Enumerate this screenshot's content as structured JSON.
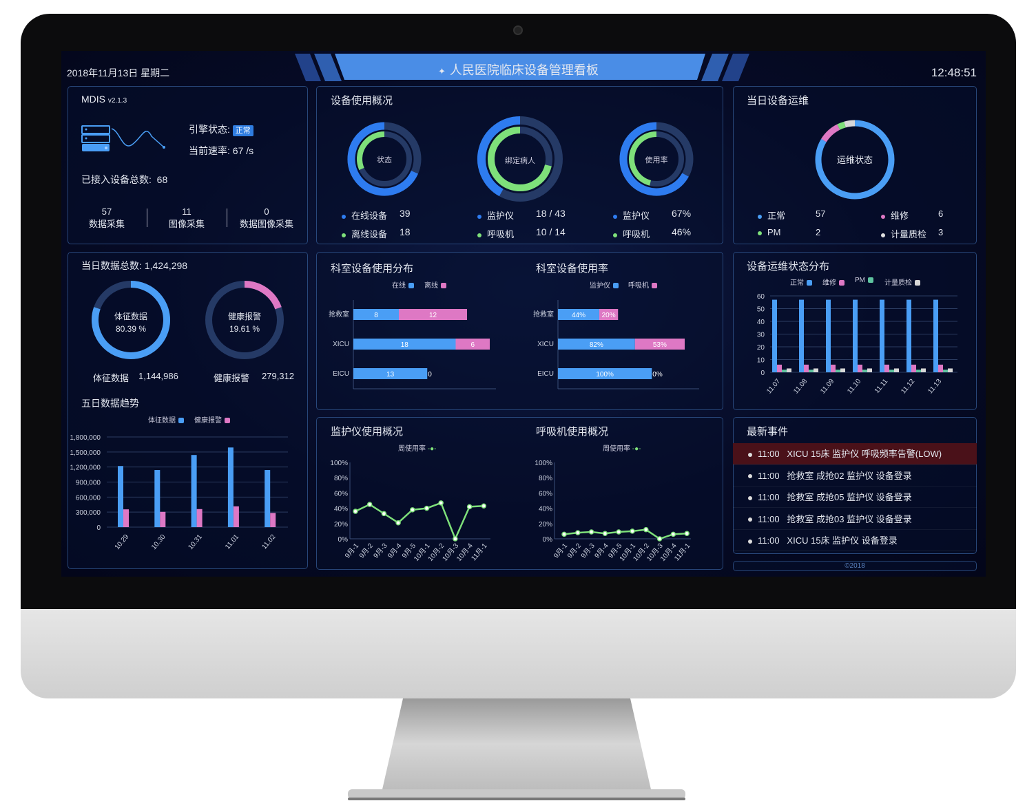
{
  "header": {
    "date": "2018年11月13日 星期二",
    "title": "人民医院临床设备管理看板",
    "clock": "12:48:51",
    "title_icon": "diamond-cluster-icon"
  },
  "colors": {
    "blue": "#4a9ef5",
    "ring_blue": "#2e7cf0",
    "green": "#7ee07a",
    "pink": "#de78c4",
    "teal": "#5fc4a0",
    "white": "#d8d8d8",
    "track": "#253a66",
    "alert_row": "#4a1119",
    "banner": "#4a8de6"
  },
  "system": {
    "name": "MDIS",
    "version": "v2.1.3",
    "engine_label": "引擎状态:",
    "engine_status": "正常",
    "rate_label": "当前速率:",
    "rate_value": "67 /s",
    "total_label": "已接入设备总数:",
    "total_value": "68",
    "stats": [
      {
        "value": "57",
        "label": "数据采集"
      },
      {
        "value": "11",
        "label": "图像采集"
      },
      {
        "value": "0",
        "label": "数据图像采集"
      }
    ]
  },
  "usage": {
    "title": "设备使用概况",
    "donuts": [
      {
        "center": "状态",
        "outer": 0.684,
        "inner": 0.316,
        "rows": [
          {
            "label": "在线设备",
            "value": "39"
          },
          {
            "label": "离线设备",
            "value": "18"
          }
        ]
      },
      {
        "center": "绑定病人",
        "outer": 0.419,
        "inner": 0.714,
        "rows": [
          {
            "label": "监护仪",
            "value": "18 / 43"
          },
          {
            "label": "呼吸机",
            "value": "10 / 14"
          }
        ]
      },
      {
        "center": "使用率",
        "outer": 0.67,
        "inner": 0.46,
        "rows": [
          {
            "label": "监护仪",
            "value": "67%"
          },
          {
            "label": "呼吸机",
            "value": "46%"
          }
        ]
      }
    ]
  },
  "ops": {
    "title": "当日设备运维",
    "center": "运维状态",
    "items": [
      {
        "label": "正常",
        "value": "57"
      },
      {
        "label": "维修",
        "value": "6"
      },
      {
        "label": "PM",
        "value": "2"
      },
      {
        "label": "计量质检",
        "value": "3"
      }
    ]
  },
  "daily": {
    "title": "当日数据总数:",
    "total": "1,424,298",
    "vital": {
      "center": "体征数据",
      "pct": "80.39 %",
      "label": "体征数据",
      "value": "1,144,986",
      "frac": 0.8039
    },
    "alarm": {
      "center": "健康报警",
      "pct": "19.61 %",
      "label": "健康报警",
      "value": "279,312",
      "frac": 0.1961
    }
  },
  "events": {
    "title": "最新事件",
    "items": [
      {
        "time": "11:00",
        "text": "XICU 15床 监护仪 呼吸频率告警(LOW)",
        "alert": true
      },
      {
        "time": "11:00",
        "text": "抢救室 成抢02 监护仪 设备登录"
      },
      {
        "time": "11:00",
        "text": "抢救室 成抢05 监护仪 设备登录"
      },
      {
        "time": "11:00",
        "text": "抢救室 成抢03 监护仪 设备登录"
      },
      {
        "time": "11:00",
        "text": "XICU 15床 监护仪 设备登录"
      }
    ]
  },
  "footer": "©2018",
  "chart_data": [
    {
      "type": "bar",
      "title": "五日数据趋势",
      "categories": [
        "10.29",
        "10.30",
        "10.31",
        "11.01",
        "11.02"
      ],
      "series": [
        {
          "name": "体征数据",
          "values": [
            1220000,
            1140000,
            1440000,
            1590000,
            1140000
          ]
        },
        {
          "name": "健康报警",
          "values": [
            355000,
            305000,
            360000,
            415000,
            283000
          ]
        }
      ],
      "yticks": [
        "0",
        "300,000",
        "600,000",
        "900,000",
        "1,200,000",
        "1,500,000",
        "1,800,000"
      ],
      "ylim": [
        0,
        1800000
      ],
      "legend": "top"
    },
    {
      "type": "bar",
      "orientation": "horizontal",
      "stacked": true,
      "title": "科室设备使用分布",
      "categories": [
        "抢救室",
        "XICU",
        "EICU"
      ],
      "series": [
        {
          "name": "在线",
          "values": [
            8,
            18,
            13
          ]
        },
        {
          "name": "离线",
          "values": [
            12,
            6,
            0
          ]
        }
      ],
      "legend": "top"
    },
    {
      "type": "bar",
      "orientation": "horizontal",
      "stacked": true,
      "title": "科室设备使用率",
      "categories": [
        "抢救室",
        "XICU",
        "EICU"
      ],
      "series": [
        {
          "name": "监护仪",
          "values": [
            44,
            82,
            100
          ],
          "labels": [
            "44%",
            "82%",
            "100%"
          ]
        },
        {
          "name": "呼吸机",
          "values": [
            20,
            53,
            0
          ],
          "labels": [
            "20%",
            "53%",
            "0%"
          ]
        }
      ],
      "legend": "top"
    },
    {
      "type": "bar",
      "title": "设备运维状态分布",
      "categories": [
        "11.07",
        "11.08",
        "11.09",
        "11.10",
        "11.11",
        "11.12",
        "11.13"
      ],
      "series": [
        {
          "name": "正常",
          "values": [
            57,
            57,
            57,
            57,
            57,
            57,
            57
          ]
        },
        {
          "name": "维修",
          "values": [
            6,
            6,
            6,
            6,
            6,
            6,
            6
          ]
        },
        {
          "name": "PM",
          "values": [
            2,
            2,
            2,
            2,
            2,
            2,
            2
          ]
        },
        {
          "name": "计量质检",
          "values": [
            3,
            3,
            3,
            3,
            3,
            3,
            3
          ]
        }
      ],
      "yticks": [
        "0",
        "10",
        "20",
        "30",
        "40",
        "50",
        "60"
      ],
      "ylim": [
        0,
        60
      ],
      "legend": "top"
    },
    {
      "type": "line",
      "title": "监护仪使用概况",
      "categories": [
        "9月-1",
        "9月-2",
        "9月-3",
        "9月-4",
        "9月-5",
        "10月-1",
        "10月-2",
        "10月-3",
        "10月-4",
        "11月-1"
      ],
      "series": [
        {
          "name": "周使用率",
          "values": [
            36,
            45,
            33,
            21,
            38,
            40,
            47,
            0,
            42,
            43
          ]
        }
      ],
      "yticks": [
        "0%",
        "20%",
        "40%",
        "60%",
        "80%",
        "100%"
      ],
      "ylim": [
        0,
        100
      ],
      "legend": "top"
    },
    {
      "type": "line",
      "title": "呼吸机使用概况",
      "categories": [
        "9月-1",
        "9月-2",
        "9月-3",
        "9月-4",
        "9月-5",
        "10月-1",
        "10月-2",
        "10月-3",
        "10月-4",
        "11月-1"
      ],
      "series": [
        {
          "name": "周使用率",
          "values": [
            6,
            8,
            9,
            7,
            9,
            10,
            12,
            0,
            6,
            7
          ]
        }
      ],
      "yticks": [
        "0%",
        "20%",
        "40%",
        "60%",
        "80%",
        "100%"
      ],
      "ylim": [
        0,
        100
      ],
      "legend": "top"
    }
  ]
}
